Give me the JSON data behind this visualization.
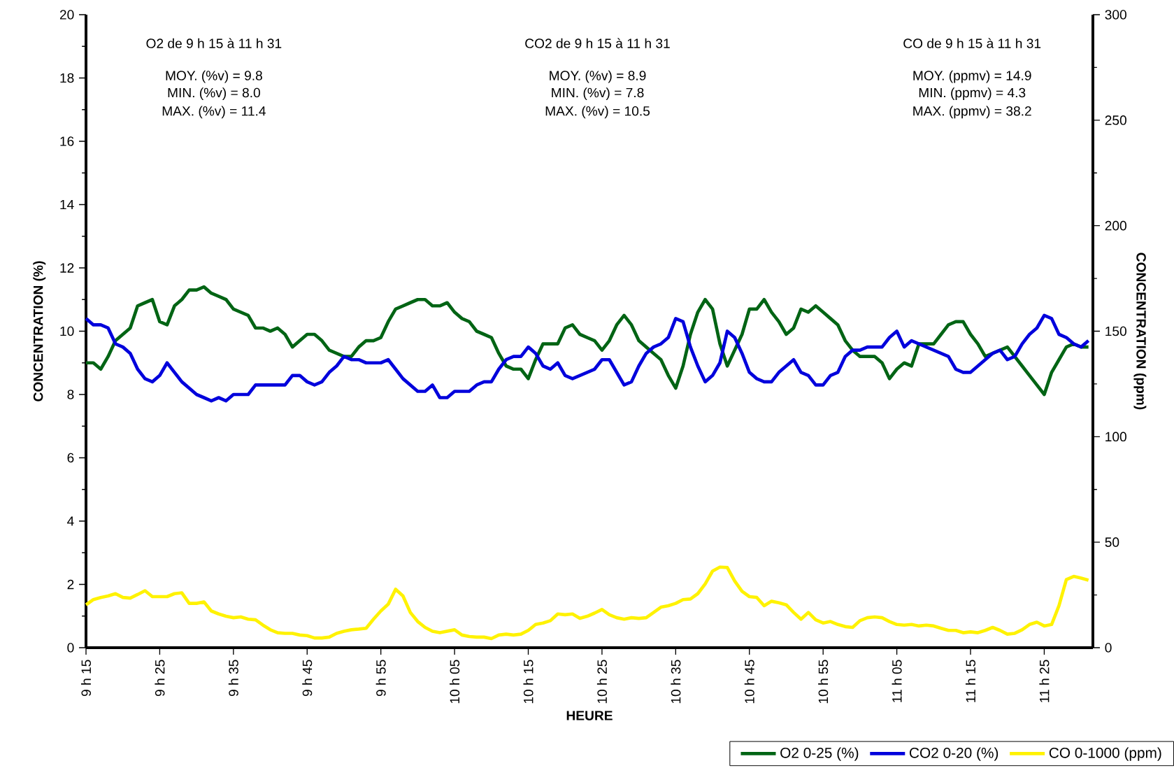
{
  "chart_data": {
    "type": "line",
    "xlabel": "HEURE",
    "ylabel": "CONCENTRATION (%)",
    "y2label": "CONCENTRATION (ppm)",
    "categories": [
      "9 h 15",
      null,
      null,
      null,
      null,
      null,
      null,
      null,
      null,
      null,
      "9 h 25",
      null,
      null,
      null,
      null,
      null,
      null,
      null,
      null,
      null,
      "9 h 35",
      null,
      null,
      null,
      null,
      null,
      null,
      null,
      null,
      null,
      "9 h 45",
      null,
      null,
      null,
      null,
      null,
      null,
      null,
      null,
      null,
      "9 h 55",
      null,
      null,
      null,
      null,
      null,
      null,
      null,
      null,
      null,
      "10 h 05",
      null,
      null,
      null,
      null,
      null,
      null,
      null,
      null,
      null,
      "10 h 15",
      null,
      null,
      null,
      null,
      null,
      null,
      null,
      null,
      null,
      "10 h 25",
      null,
      null,
      null,
      null,
      null,
      null,
      null,
      null,
      null,
      "10 h 35",
      null,
      null,
      null,
      null,
      null,
      null,
      null,
      null,
      null,
      "10 h 45",
      null,
      null,
      null,
      null,
      null,
      null,
      null,
      null,
      null,
      "10 h 55",
      null,
      null,
      null,
      null,
      null,
      null,
      null,
      null,
      null,
      "11 h 05",
      null,
      null,
      null,
      null,
      null,
      null,
      null,
      null,
      null,
      "11 h 15",
      null,
      null,
      null,
      null,
      null,
      null,
      null,
      null,
      null,
      "11 h 25",
      null,
      null,
      null,
      null,
      null,
      null
    ],
    "ylim": [
      0,
      20
    ],
    "y2lim": [
      0,
      300
    ],
    "yticks": [
      0,
      {
        "value": 1,
        "label": null
      },
      2,
      {
        "value": 3,
        "label": null
      },
      4,
      {
        "value": 5,
        "label": null
      },
      6,
      {
        "value": 7,
        "label": null
      },
      8,
      {
        "value": 9,
        "label": null
      },
      10,
      {
        "value": 11,
        "label": null
      },
      12,
      {
        "value": 13,
        "label": null
      },
      14,
      {
        "value": 15,
        "label": null
      },
      16,
      {
        "value": 17,
        "label": null
      },
      18,
      {
        "value": 19,
        "label": null
      },
      20
    ],
    "y2ticks": [
      0,
      {
        "value": 25,
        "label": null
      },
      50,
      {
        "value": 75,
        "label": null
      },
      100,
      {
        "value": 125,
        "label": null
      },
      150,
      {
        "value": 175,
        "label": null
      },
      200,
      {
        "value": 225,
        "label": null
      },
      250,
      {
        "value": 275,
        "label": null
      },
      300
    ],
    "legend": "bottom right",
    "line_style": "solid",
    "annotations": [
      "O2 de 9 h 15 à 11 h 31",
      "MOY. (%v) = 9.8",
      "MIN. (%v) = 8.0",
      "MAX. (%v) = 11.4",
      "CO2 de 9 h 15 à 11 h 31",
      "MOY. (%v) = 8.9",
      "MIN. (%v) = 7.8",
      "MAX. (%v) = 10.5",
      "CO de 9 h 15 à 11 h 31",
      "MOY. (ppmv) = 14.9",
      "MIN. (ppmv) = 4.3",
      "MAX. (ppmv) = 38.2"
    ],
    "series": [
      {
        "name": "O2 0-25 (%)",
        "color": "#006414",
        "values": [
          9.0,
          9.0,
          8.8,
          9.2,
          9.7,
          9.9,
          10.1,
          10.8,
          10.9,
          11.0,
          10.3,
          10.2,
          10.8,
          11.0,
          11.3,
          11.3,
          11.4,
          11.2,
          11.1,
          11.0,
          10.7,
          10.6,
          10.5,
          10.1,
          10.1,
          10.0,
          10.1,
          9.9,
          9.5,
          9.7,
          9.9,
          9.9,
          9.7,
          9.4,
          9.3,
          9.2,
          9.2,
          9.5,
          9.7,
          9.7,
          9.8,
          10.3,
          10.7,
          10.8,
          10.9,
          11.0,
          11.0,
          10.8,
          10.8,
          10.9,
          10.6,
          10.4,
          10.3,
          10.0,
          9.9,
          9.8,
          9.3,
          8.9,
          8.8,
          8.8,
          8.5,
          9.1,
          9.6,
          9.6,
          9.6,
          10.1,
          10.2,
          9.9,
          9.8,
          9.7,
          9.4,
          9.7,
          10.2,
          10.5,
          10.2,
          9.7,
          9.5,
          9.3,
          9.1,
          8.6,
          8.2,
          8.9,
          9.9,
          10.6,
          11.0,
          10.7,
          9.6,
          8.9,
          9.4,
          9.9,
          10.7,
          10.7,
          11.0,
          10.6,
          10.3,
          9.9,
          10.1,
          10.7,
          10.6,
          10.8,
          10.6,
          10.4,
          10.2,
          9.7,
          9.4,
          9.2,
          9.2,
          9.2,
          9.0,
          8.5,
          8.8,
          9.0,
          8.9,
          9.6,
          9.6,
          9.6,
          9.9,
          10.2,
          10.3,
          10.3,
          9.9,
          9.6,
          9.2,
          9.3,
          9.4,
          9.5,
          9.2,
          8.9,
          8.6,
          8.3,
          8.0,
          8.7,
          9.1,
          9.5,
          9.6,
          9.5,
          9.5
        ]
      },
      {
        "name": "CO2 0-20 (%)",
        "color": "#0000dc",
        "values": [
          10.4,
          10.2,
          10.2,
          10.1,
          9.6,
          9.5,
          9.3,
          8.8,
          8.5,
          8.4,
          8.6,
          9.0,
          8.7,
          8.4,
          8.2,
          8.0,
          7.9,
          7.8,
          7.9,
          7.8,
          8.0,
          8.0,
          8.0,
          8.3,
          8.3,
          8.3,
          8.3,
          8.3,
          8.6,
          8.6,
          8.4,
          8.3,
          8.4,
          8.7,
          8.9,
          9.2,
          9.1,
          9.1,
          9.0,
          9.0,
          9.0,
          9.1,
          8.8,
          8.5,
          8.3,
          8.1,
          8.1,
          8.3,
          7.9,
          7.9,
          8.1,
          8.1,
          8.1,
          8.3,
          8.4,
          8.4,
          8.8,
          9.1,
          9.2,
          9.2,
          9.5,
          9.3,
          8.9,
          8.8,
          9.0,
          8.6,
          8.5,
          8.6,
          8.7,
          8.8,
          9.1,
          9.1,
          8.7,
          8.3,
          8.4,
          8.9,
          9.3,
          9.5,
          9.6,
          9.8,
          10.4,
          10.3,
          9.5,
          8.9,
          8.4,
          8.6,
          9.0,
          10.0,
          9.8,
          9.3,
          8.7,
          8.5,
          8.4,
          8.4,
          8.7,
          8.9,
          9.1,
          8.7,
          8.6,
          8.3,
          8.3,
          8.6,
          8.7,
          9.2,
          9.4,
          9.4,
          9.5,
          9.5,
          9.5,
          9.8,
          10.0,
          9.5,
          9.7,
          9.6,
          9.5,
          9.4,
          9.3,
          9.2,
          8.8,
          8.7,
          8.7,
          8.9,
          9.1,
          9.3,
          9.4,
          9.1,
          9.2,
          9.6,
          9.9,
          10.1,
          10.5,
          10.4,
          9.9,
          9.8,
          9.6,
          9.5,
          9.7
        ]
      },
      {
        "name": "CO 0-1000 (ppm)",
        "color": "#fff200",
        "axis": "y2",
        "values": [
          20.3,
          22.8,
          23.8,
          24.5,
          25.6,
          23.8,
          23.5,
          25.2,
          27.0,
          24.2,
          24.2,
          24.2,
          25.6,
          26.0,
          21.0,
          21.0,
          21.7,
          17.4,
          16.0,
          14.9,
          14.2,
          14.6,
          13.5,
          13.2,
          10.7,
          8.5,
          7.1,
          6.8,
          6.8,
          6.0,
          5.7,
          4.6,
          4.6,
          5.0,
          6.8,
          7.8,
          8.5,
          8.8,
          9.2,
          13.5,
          17.4,
          20.6,
          27.7,
          24.5,
          16.7,
          12.4,
          9.6,
          7.8,
          7.1,
          7.8,
          8.5,
          6.0,
          5.3,
          5.0,
          5.0,
          4.3,
          6.0,
          6.4,
          6.0,
          6.4,
          8.2,
          11.0,
          11.7,
          12.8,
          16.0,
          15.6,
          16.0,
          13.9,
          14.9,
          16.4,
          18.1,
          15.6,
          14.2,
          13.5,
          14.2,
          13.9,
          14.2,
          16.7,
          19.2,
          19.9,
          21.0,
          22.8,
          23.1,
          25.6,
          30.2,
          36.3,
          38.2,
          38.0,
          31.6,
          26.7,
          24.2,
          23.8,
          19.9,
          22.0,
          21.3,
          20.3,
          16.7,
          13.5,
          16.7,
          13.2,
          11.7,
          12.4,
          11.0,
          10.0,
          9.6,
          12.8,
          14.2,
          14.6,
          14.2,
          12.4,
          11.0,
          10.7,
          11.0,
          10.3,
          10.7,
          10.3,
          9.2,
          8.2,
          8.2,
          7.1,
          7.5,
          7.1,
          8.2,
          9.6,
          8.2,
          6.4,
          6.8,
          8.5,
          11.0,
          12.1,
          10.3,
          11.0,
          19.9,
          32.3,
          33.8,
          33.0,
          32.0
        ]
      }
    ]
  }
}
